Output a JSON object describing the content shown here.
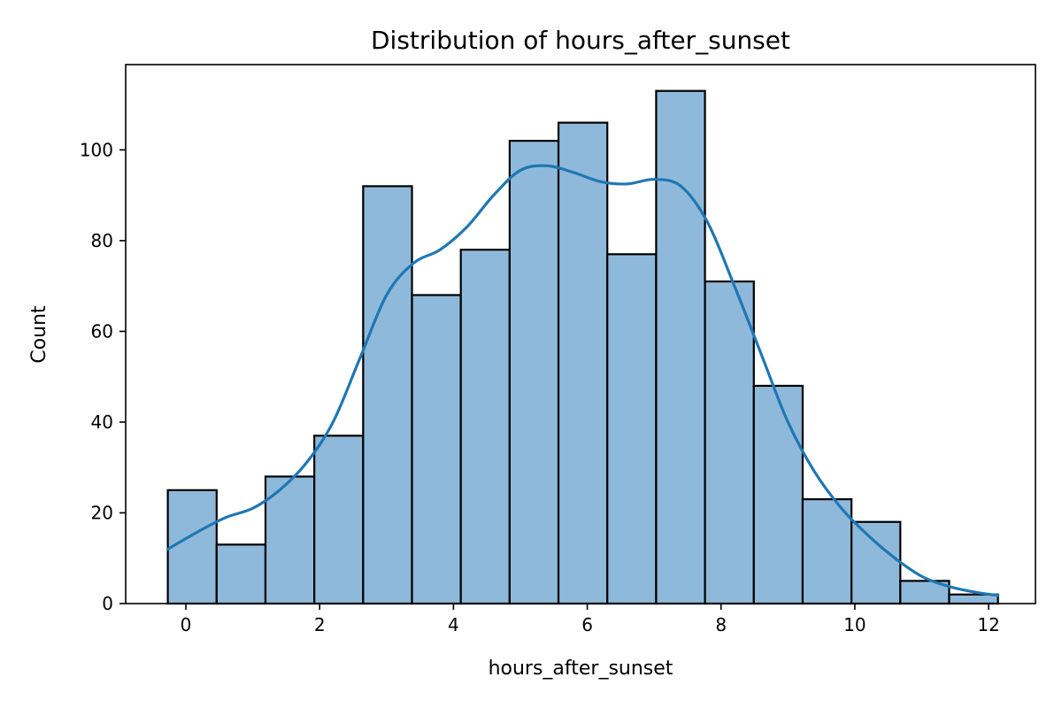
{
  "chart_data": {
    "type": "bar",
    "subtype": "histogram",
    "title": "Distribution of hours_after_sunset",
    "xlabel": "hours_after_sunset",
    "ylabel": "Count",
    "xlim": [
      -0.9,
      12.7
    ],
    "ylim": [
      0,
      118.8
    ],
    "xticks": [
      0,
      2,
      4,
      6,
      8,
      10,
      12
    ],
    "yticks": [
      0,
      20,
      40,
      60,
      80,
      100
    ],
    "grid": false,
    "bins": [
      {
        "x0": -0.27,
        "x1": 0.46,
        "count": 25
      },
      {
        "x0": 0.46,
        "x1": 1.19,
        "count": 13
      },
      {
        "x0": 1.19,
        "x1": 1.92,
        "count": 28
      },
      {
        "x0": 1.92,
        "x1": 2.65,
        "count": 37
      },
      {
        "x0": 2.65,
        "x1": 3.38,
        "count": 92
      },
      {
        "x0": 3.38,
        "x1": 4.11,
        "count": 68
      },
      {
        "x0": 4.11,
        "x1": 4.84,
        "count": 78
      },
      {
        "x0": 4.84,
        "x1": 5.57,
        "count": 102
      },
      {
        "x0": 5.57,
        "x1": 6.3,
        "count": 106
      },
      {
        "x0": 6.3,
        "x1": 7.03,
        "count": 77
      },
      {
        "x0": 7.03,
        "x1": 7.76,
        "count": 113
      },
      {
        "x0": 7.76,
        "x1": 8.49,
        "count": 71
      },
      {
        "x0": 8.49,
        "x1": 9.22,
        "count": 48
      },
      {
        "x0": 9.22,
        "x1": 9.95,
        "count": 23
      },
      {
        "x0": 9.95,
        "x1": 10.68,
        "count": 18
      },
      {
        "x0": 10.68,
        "x1": 11.41,
        "count": 5
      },
      {
        "x0": 11.41,
        "x1": 12.14,
        "count": 2
      }
    ],
    "kde": {
      "x": [
        -0.27,
        0.2,
        0.6,
        1.0,
        1.4,
        1.8,
        2.2,
        2.6,
        3.0,
        3.4,
        3.8,
        4.2,
        4.6,
        5.0,
        5.4,
        5.8,
        6.2,
        6.6,
        7.0,
        7.4,
        7.8,
        8.2,
        8.6,
        9.0,
        9.4,
        9.8,
        10.2,
        10.6,
        11.0,
        11.4,
        11.8,
        12.14
      ],
      "y": [
        12,
        16,
        19,
        21,
        25,
        31,
        40,
        54,
        68,
        75,
        78,
        83,
        90,
        95.5,
        96.5,
        95,
        93,
        92.5,
        93.5,
        92,
        84,
        70,
        55,
        40,
        29,
        21,
        15,
        10,
        6,
        3.8,
        2.5,
        1.8
      ]
    },
    "colors": {
      "bar_fill": "#8fb9da",
      "bar_edge": "#000000",
      "kde_line": "#1f77b4"
    }
  }
}
